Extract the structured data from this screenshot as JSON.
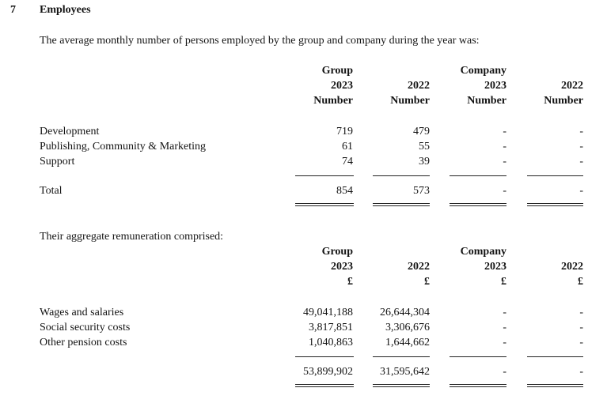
{
  "section": {
    "number": "7",
    "title": "Employees"
  },
  "employees": {
    "intro": "The average monthly number of persons employed by the group and company during the year was:",
    "headers": [
      [
        "Group",
        "2023",
        "Number"
      ],
      [
        "",
        "2022",
        "Number"
      ],
      [
        "Company",
        "2023",
        "Number"
      ],
      [
        "",
        "2022",
        "Number"
      ]
    ],
    "rows": [
      {
        "label": "Development",
        "values": [
          "719",
          "479",
          "-",
          "-"
        ]
      },
      {
        "label": "Publishing, Community & Marketing",
        "values": [
          "61",
          "55",
          "-",
          "-"
        ]
      },
      {
        "label": "Support",
        "values": [
          "74",
          "39",
          "-",
          "-"
        ]
      }
    ],
    "total": {
      "label": "Total",
      "values": [
        "854",
        "573",
        "-",
        "-"
      ]
    }
  },
  "remuneration": {
    "intro": "Their aggregate remuneration comprised:",
    "headers": [
      [
        "Group",
        "2023",
        "£"
      ],
      [
        "",
        "2022",
        "£"
      ],
      [
        "Company",
        "2023",
        "£"
      ],
      [
        "",
        "2022",
        "£"
      ]
    ],
    "rows": [
      {
        "label": "Wages and salaries",
        "values": [
          "49,041,188",
          "26,644,304",
          "-",
          "-"
        ]
      },
      {
        "label": "Social security costs",
        "values": [
          "3,817,851",
          "3,306,676",
          "-",
          "-"
        ]
      },
      {
        "label": "Other pension costs",
        "values": [
          "1,040,863",
          "1,644,662",
          "-",
          "-"
        ]
      }
    ],
    "total": {
      "label": "",
      "values": [
        "53,899,902",
        "31,595,642",
        "-",
        "-"
      ]
    }
  }
}
